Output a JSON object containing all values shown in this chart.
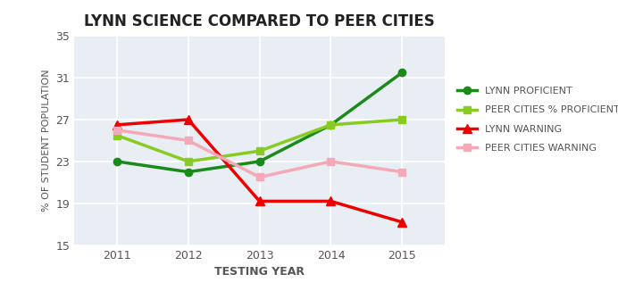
{
  "title": "LYNN SCIENCE COMPARED TO PEER CITIES",
  "xlabel": "TESTING YEAR",
  "ylabel": "% OF STUDENT POPULATION",
  "years": [
    2011,
    2012,
    2013,
    2014,
    2015
  ],
  "lynn_proficient": [
    23.0,
    22.0,
    23.0,
    26.5,
    31.5
  ],
  "peer_cities_proficient": [
    25.5,
    23.0,
    24.0,
    26.5,
    27.0
  ],
  "lynn_warning": [
    26.5,
    27.0,
    19.2,
    19.2,
    17.2
  ],
  "peer_cities_warning": [
    26.0,
    25.0,
    21.5,
    23.0,
    22.0
  ],
  "lynn_proficient_color": "#1a8a1a",
  "peer_cities_proficient_color": "#88cc22",
  "lynn_warning_color": "#ee0000",
  "peer_cities_warning_color": "#f4a8b8",
  "ylim": [
    15,
    35
  ],
  "yticks": [
    15,
    19,
    23,
    27,
    31,
    35
  ],
  "plot_bg": "#f0f4f0",
  "fig_bg": "#ffffff",
  "legend_labels": [
    "LYNN PROFICIENT",
    "PEER CITIES % PROFICIENT",
    "LYNN WARNING",
    "PEER CITIES WARNING"
  ]
}
